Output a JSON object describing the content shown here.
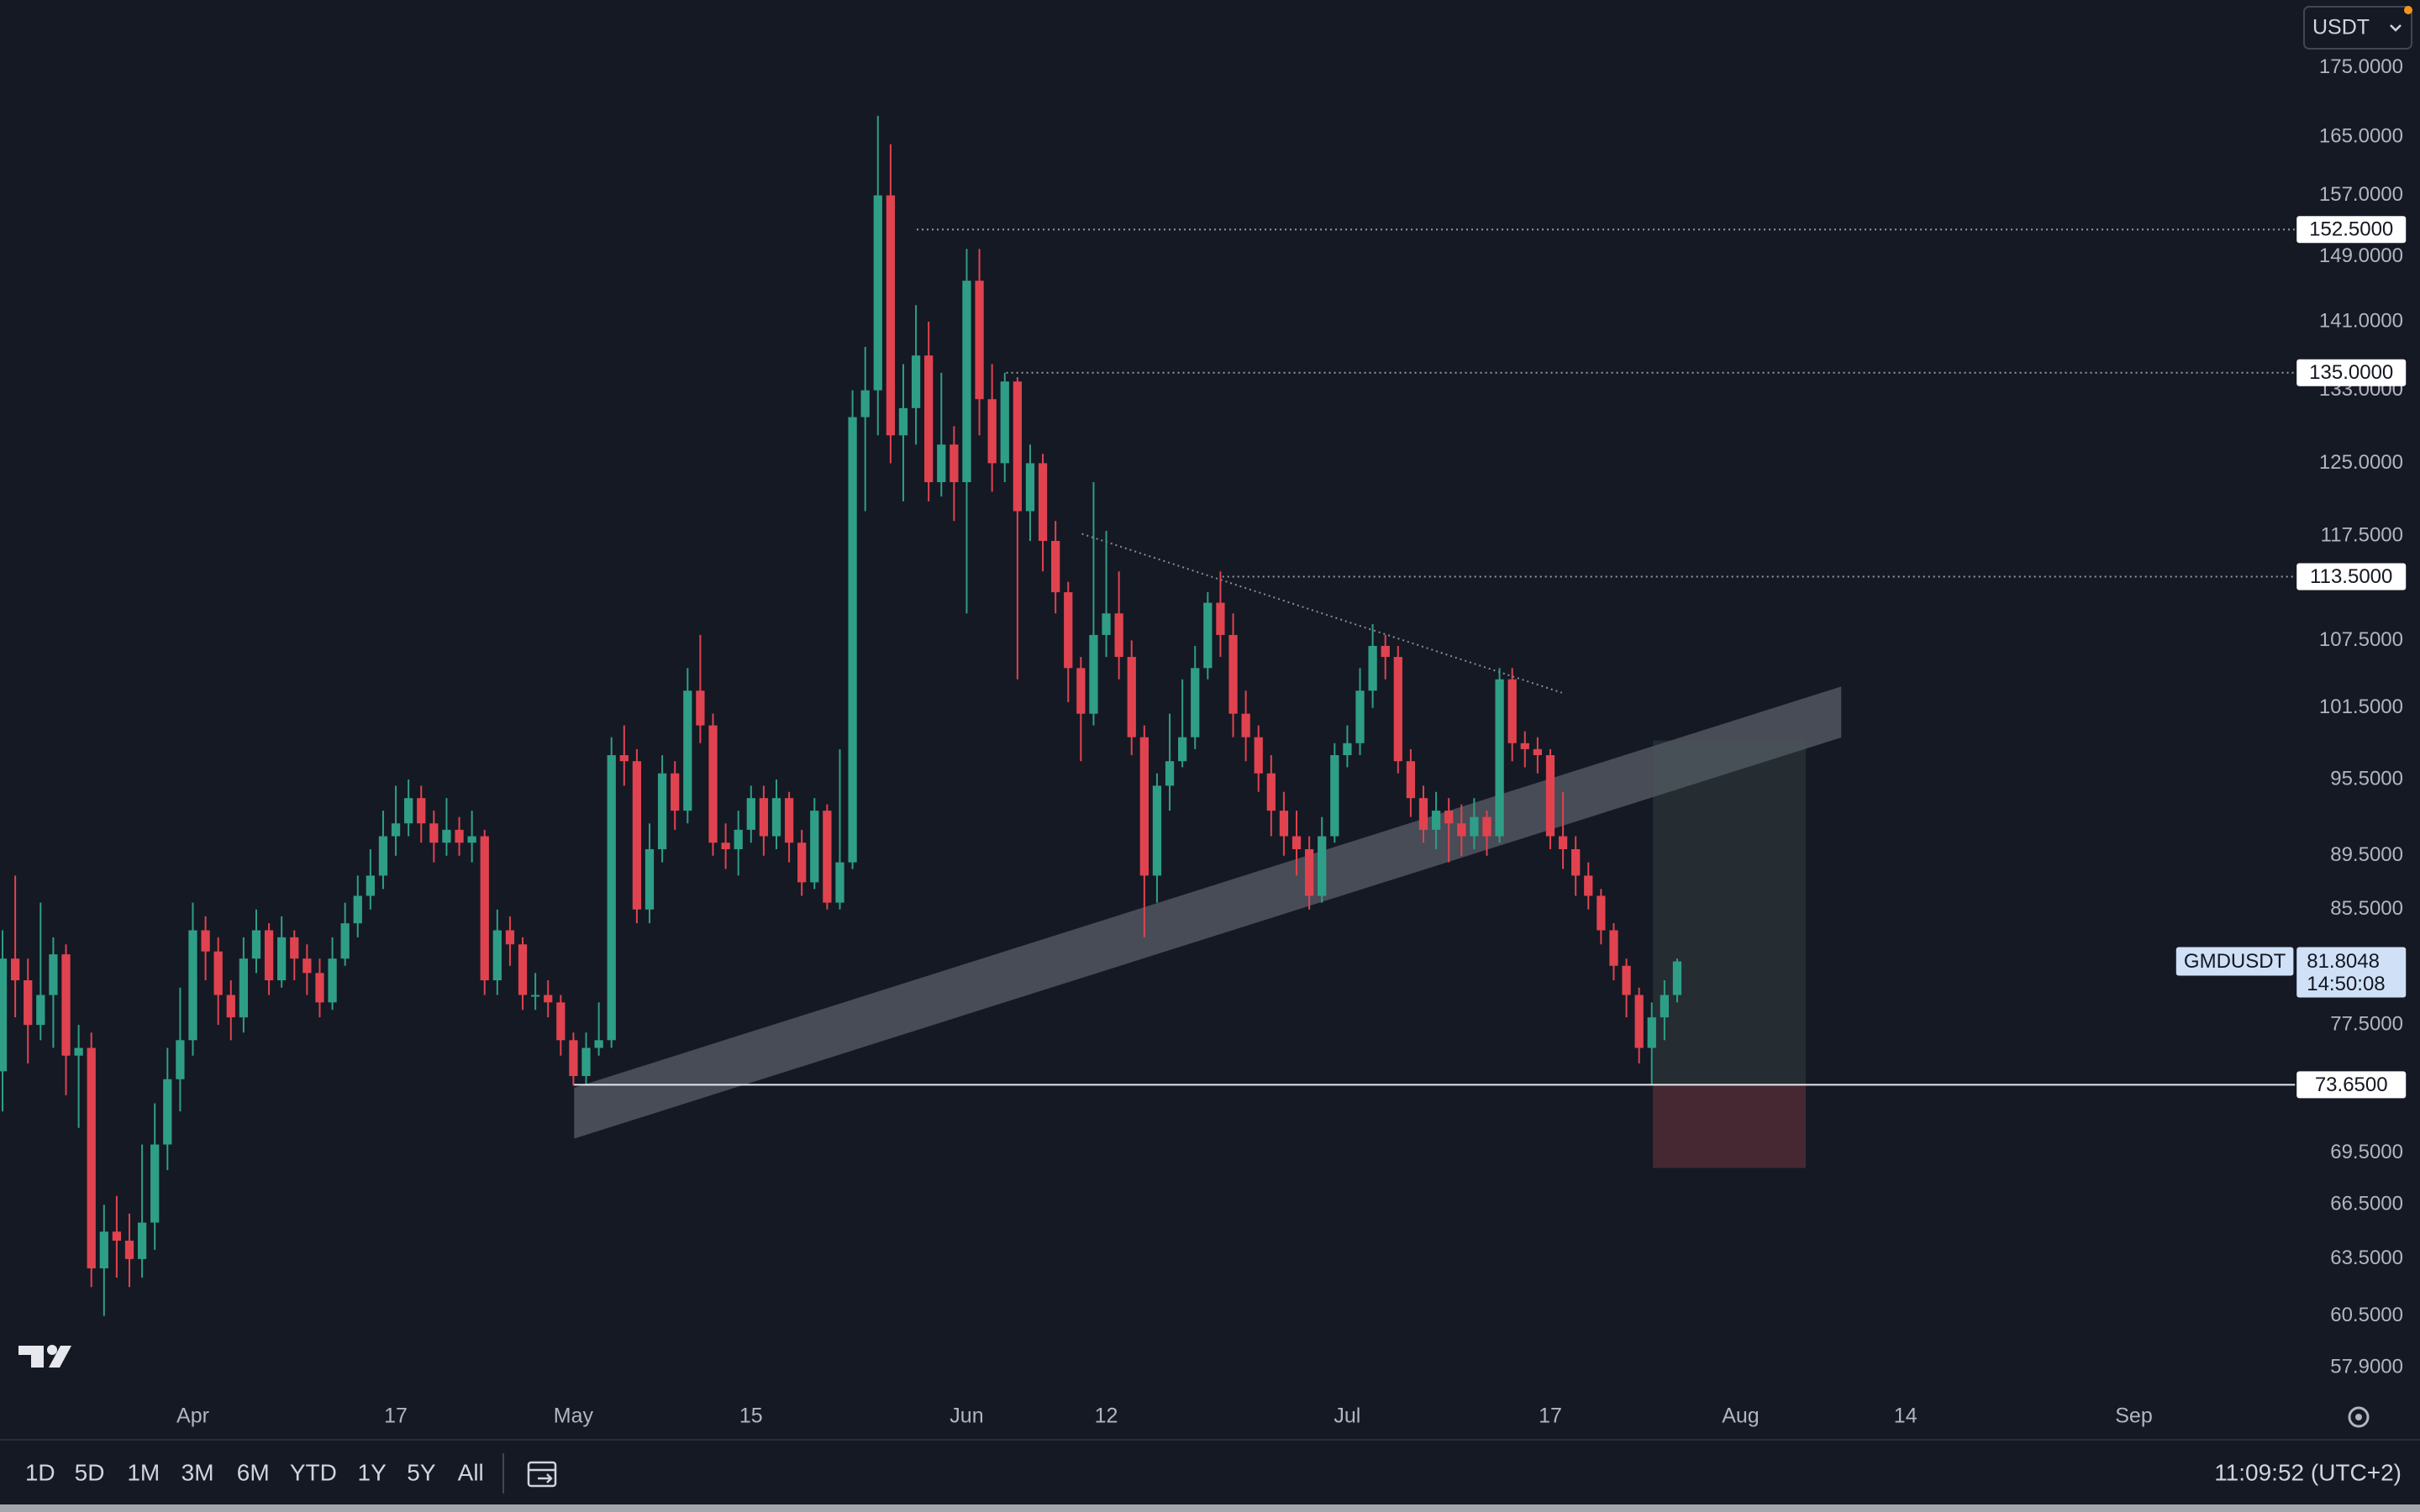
{
  "quote_currency": "USDT",
  "toolbar": {
    "ranges": [
      "1D",
      "5D",
      "1M",
      "3M",
      "6M",
      "YTD",
      "1Y",
      "5Y",
      "All"
    ],
    "clock": "11:09:52 (UTC+2)"
  },
  "chart_data": {
    "type": "candlestick",
    "symbol": "GMDUSDT",
    "countdown": "14:50:08",
    "up_color": "#2f9e87",
    "down_color": "#e0434f",
    "log_scale": true,
    "grid": false,
    "xlim": [
      0.8,
      181.7
    ],
    "ylim": [
      56.5,
      185.4
    ],
    "xticks": [
      {
        "value": 16,
        "label": "Apr"
      },
      {
        "value": 32,
        "label": "17"
      },
      {
        "value": 46,
        "label": "May"
      },
      {
        "value": 60,
        "label": "15"
      },
      {
        "value": 77,
        "label": "Jun"
      },
      {
        "value": 88,
        "label": "12"
      },
      {
        "value": 107,
        "label": "Jul"
      },
      {
        "value": 123,
        "label": "17"
      },
      {
        "value": 138,
        "label": "Aug"
      },
      {
        "value": 151,
        "label": "14"
      },
      {
        "value": 169,
        "label": "Sep"
      }
    ],
    "yticks": [
      {
        "value": 175,
        "label": "175.0000"
      },
      {
        "value": 165,
        "label": "165.0000"
      },
      {
        "value": 157,
        "label": "157.0000"
      },
      {
        "value": 149,
        "label": "149.0000"
      },
      {
        "value": 141,
        "label": "141.0000"
      },
      {
        "value": 133,
        "label": "133.0000"
      },
      {
        "value": 125,
        "label": "125.0000"
      },
      {
        "value": 117.5,
        "label": "117.5000"
      },
      {
        "value": 107.5,
        "label": "107.5000"
      },
      {
        "value": 101.5,
        "label": "101.5000"
      },
      {
        "value": 95.5,
        "label": "95.5000"
      },
      {
        "value": 89.5,
        "label": "89.5000"
      },
      {
        "value": 85.5,
        "label": "85.5000"
      },
      {
        "value": 77.5,
        "label": "77.5000"
      },
      {
        "value": 69.5,
        "label": "69.5000"
      },
      {
        "value": 66.5,
        "label": "66.5000"
      },
      {
        "value": 63.5,
        "label": "63.5000"
      },
      {
        "value": 60.5,
        "label": "60.5000"
      },
      {
        "value": 57.9,
        "label": "57.9000"
      }
    ],
    "levels": [
      {
        "value": 152.5,
        "label": "152.5000"
      },
      {
        "value": 135,
        "label": "135.0000"
      },
      {
        "value": 113.5,
        "label": "113.5000"
      },
      {
        "value": 73.65,
        "label": "73.6500"
      }
    ],
    "x": [
      1,
      2,
      3,
      4,
      5,
      6,
      7,
      8,
      9,
      10,
      11,
      12,
      13,
      14,
      15,
      16,
      17,
      18,
      19,
      20,
      21,
      22,
      23,
      24,
      25,
      26,
      27,
      28,
      29,
      30,
      31,
      32,
      33,
      34,
      35,
      36,
      37,
      38,
      39,
      40,
      41,
      42,
      43,
      44,
      45,
      46,
      47,
      48,
      49,
      50,
      51,
      52,
      53,
      54,
      55,
      56,
      57,
      58,
      59,
      60,
      61,
      62,
      63,
      64,
      65,
      66,
      67,
      68,
      69,
      70,
      71,
      72,
      73,
      74,
      75,
      76,
      77,
      78,
      79,
      80,
      81,
      82,
      83,
      84,
      85,
      86,
      87,
      88,
      89,
      90,
      91,
      92,
      93,
      94,
      95,
      96,
      97,
      98,
      99,
      100,
      101,
      102,
      103,
      104,
      105,
      106,
      107,
      108,
      109,
      110,
      111,
      112,
      113,
      114,
      115,
      116,
      117,
      118,
      119,
      120,
      121,
      122,
      123,
      124,
      125,
      126,
      127,
      128,
      129,
      130,
      131,
      132,
      133
    ],
    "open": [
      74.5,
      82,
      80.5,
      77.5,
      79.5,
      82.3,
      75.5,
      76,
      63,
      65,
      64.5,
      63.5,
      65.5,
      70,
      74,
      76.5,
      84,
      82.5,
      79.5,
      78,
      82,
      84,
      80.5,
      83.5,
      82,
      81,
      79,
      82,
      84.5,
      86.5,
      88,
      91,
      92,
      94,
      92,
      90.5,
      91.5,
      90.5,
      91,
      80.5,
      84,
      83,
      79.5,
      79.5,
      79,
      76.5,
      74.2,
      76,
      76.5,
      97.5,
      97,
      85.5,
      90,
      96,
      93,
      103,
      100,
      90.5,
      90,
      91.5,
      94,
      91,
      94,
      90.5,
      87.5,
      93,
      86,
      89,
      130,
      133,
      157,
      128,
      131,
      137,
      123,
      127,
      123,
      146,
      132,
      125,
      134,
      120,
      125,
      117,
      112,
      105,
      101,
      108,
      110,
      106,
      99,
      88,
      95,
      97,
      99,
      105,
      111,
      108,
      101,
      99,
      96,
      93,
      91,
      90,
      86.5,
      91,
      97.5,
      98.5,
      103,
      107,
      106,
      97,
      94,
      91.5,
      93,
      92,
      91,
      92.5,
      91,
      104,
      98.5,
      98,
      97.5,
      91,
      90,
      88,
      86.5,
      84,
      81.5,
      79.5,
      76,
      78,
      79.5
    ],
    "high": [
      84,
      88,
      82,
      86,
      83.5,
      83,
      77.5,
      77,
      66.5,
      67,
      66,
      70,
      72.5,
      76,
      80,
      86,
      85,
      83.5,
      80.5,
      83.5,
      85.5,
      84.5,
      85,
      84,
      83,
      82,
      83.5,
      86,
      88,
      90,
      93,
      95,
      95.5,
      95,
      93,
      94,
      92.5,
      93,
      91.5,
      85.5,
      85,
      83.5,
      81,
      80.5,
      79.5,
      77,
      77,
      79,
      99,
      100,
      98,
      92,
      97.5,
      97,
      105,
      108,
      101,
      92,
      93,
      95,
      95,
      95.5,
      94.5,
      91.5,
      94,
      93.5,
      98,
      133,
      138,
      168,
      164,
      136,
      143,
      141,
      135,
      129,
      150,
      150,
      136,
      135,
      134.5,
      127,
      126,
      119,
      113,
      106,
      123,
      118,
      114,
      107.5,
      100,
      96,
      101,
      104,
      107,
      112,
      114,
      110,
      103,
      100,
      97.5,
      94.5,
      93,
      91,
      92.5,
      98.5,
      100,
      105,
      109,
      108,
      107,
      98,
      95,
      94.5,
      94,
      93.5,
      94,
      93,
      105,
      105,
      99.5,
      99,
      98,
      94.5,
      91,
      89,
      87,
      84.5,
      82,
      80,
      79,
      80.5,
      82
    ],
    "low": [
      72,
      78,
      75,
      76.5,
      76,
      73,
      71,
      62,
      60.5,
      62.5,
      62,
      62.5,
      64,
      68.5,
      72,
      75.5,
      80.5,
      77.5,
      76.5,
      77,
      81,
      79.5,
      80,
      80.5,
      79.5,
      78,
      78.5,
      81.5,
      83.5,
      85.5,
      87,
      89.5,
      91,
      90.5,
      89,
      89.5,
      89.5,
      89,
      79.5,
      79.5,
      81.5,
      78.5,
      78.5,
      78,
      75.5,
      73.6,
      73.7,
      75.5,
      76,
      95,
      84.5,
      84.5,
      89,
      91.5,
      92,
      98.5,
      89.5,
      88.5,
      88,
      90.5,
      89.5,
      90,
      89,
      86.5,
      87,
      85.5,
      85.5,
      88.5,
      120,
      128,
      125,
      121,
      127,
      121,
      121.5,
      119,
      110,
      128,
      122,
      123,
      104,
      117,
      114,
      110,
      102,
      97,
      100,
      106,
      104,
      97.5,
      83.5,
      86,
      93,
      96.5,
      98,
      104,
      106,
      99,
      97,
      94.5,
      91,
      89.5,
      88,
      85.5,
      86,
      90.5,
      96.5,
      97.5,
      101.5,
      104,
      96,
      92.5,
      90.5,
      90,
      89,
      89.5,
      90,
      89.5,
      90.5,
      97,
      96.5,
      96,
      90,
      88.5,
      86.5,
      85.5,
      83,
      80.5,
      78,
      75,
      73.65,
      76.5,
      79
    ],
    "close": [
      82,
      80.5,
      77.5,
      79.5,
      82.3,
      75.5,
      76,
      63,
      65,
      64.5,
      63.5,
      65.5,
      70,
      74,
      76.5,
      84,
      82.5,
      79.5,
      78,
      82,
      84,
      80.5,
      83.5,
      82,
      81,
      79,
      82,
      84.5,
      86.5,
      88,
      91,
      92,
      94,
      92,
      90.5,
      91.5,
      90.5,
      91,
      80.5,
      84,
      83,
      79.5,
      79.5,
      79,
      76.5,
      74.2,
      76,
      76.5,
      97.5,
      97,
      85.5,
      90,
      96,
      93,
      103,
      100,
      90.5,
      90,
      91.5,
      94,
      91,
      94,
      90.5,
      87.5,
      93,
      86,
      89,
      130,
      133,
      157,
      128,
      131,
      137,
      123,
      127,
      123,
      146,
      132,
      125,
      134,
      120,
      125,
      117,
      112,
      105,
      101,
      108,
      110,
      106,
      99,
      88,
      95,
      97,
      99,
      105,
      111,
      108,
      101,
      99,
      96,
      93,
      91,
      90,
      86.5,
      91,
      97.5,
      98.5,
      103,
      107,
      106,
      97,
      94,
      91.5,
      93,
      92,
      91,
      92.5,
      91,
      104,
      98.5,
      98,
      97.5,
      91,
      90,
      88,
      86.5,
      84,
      81.5,
      79.5,
      76,
      78,
      79.5,
      81.8048
    ]
  }
}
